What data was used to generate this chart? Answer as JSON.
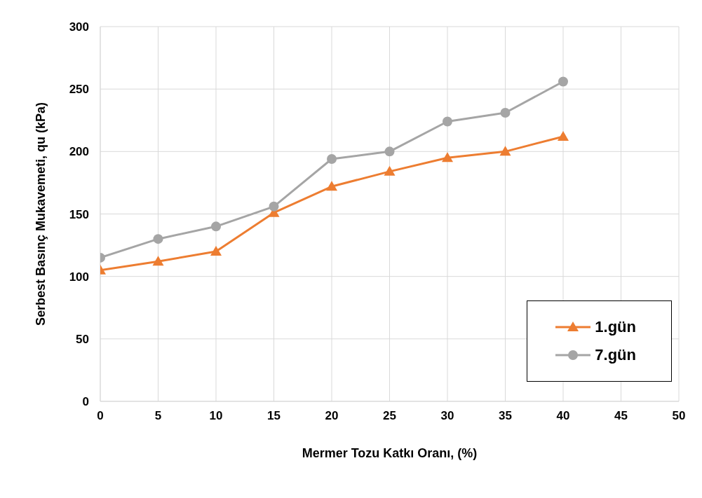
{
  "chart_data": {
    "type": "line",
    "xlabel": "Mermer Tozu Katkı Oranı, (%)",
    "ylabel": "Serbest Basınç Mukavemeti, qu (kPa)",
    "x": [
      0,
      5,
      10,
      15,
      20,
      25,
      30,
      35,
      40
    ],
    "series": [
      {
        "name": "1.gün",
        "color": "#ed7d31",
        "marker": "triangle",
        "values": [
          105,
          112,
          120,
          151,
          172,
          184,
          195,
          200,
          212
        ]
      },
      {
        "name": "7.gün",
        "color": "#a5a5a5",
        "marker": "circle",
        "values": [
          115,
          130,
          140,
          156,
          194,
          200,
          224,
          231,
          256
        ]
      }
    ],
    "xlim": [
      0,
      50
    ],
    "xticks": [
      0,
      5,
      10,
      15,
      20,
      25,
      30,
      35,
      40,
      45,
      50
    ],
    "ylim": [
      0,
      300
    ],
    "yticks": [
      0,
      50,
      100,
      150,
      200,
      250,
      300
    ],
    "grid": true,
    "legend": "bottom right",
    "line_style": "solid"
  }
}
